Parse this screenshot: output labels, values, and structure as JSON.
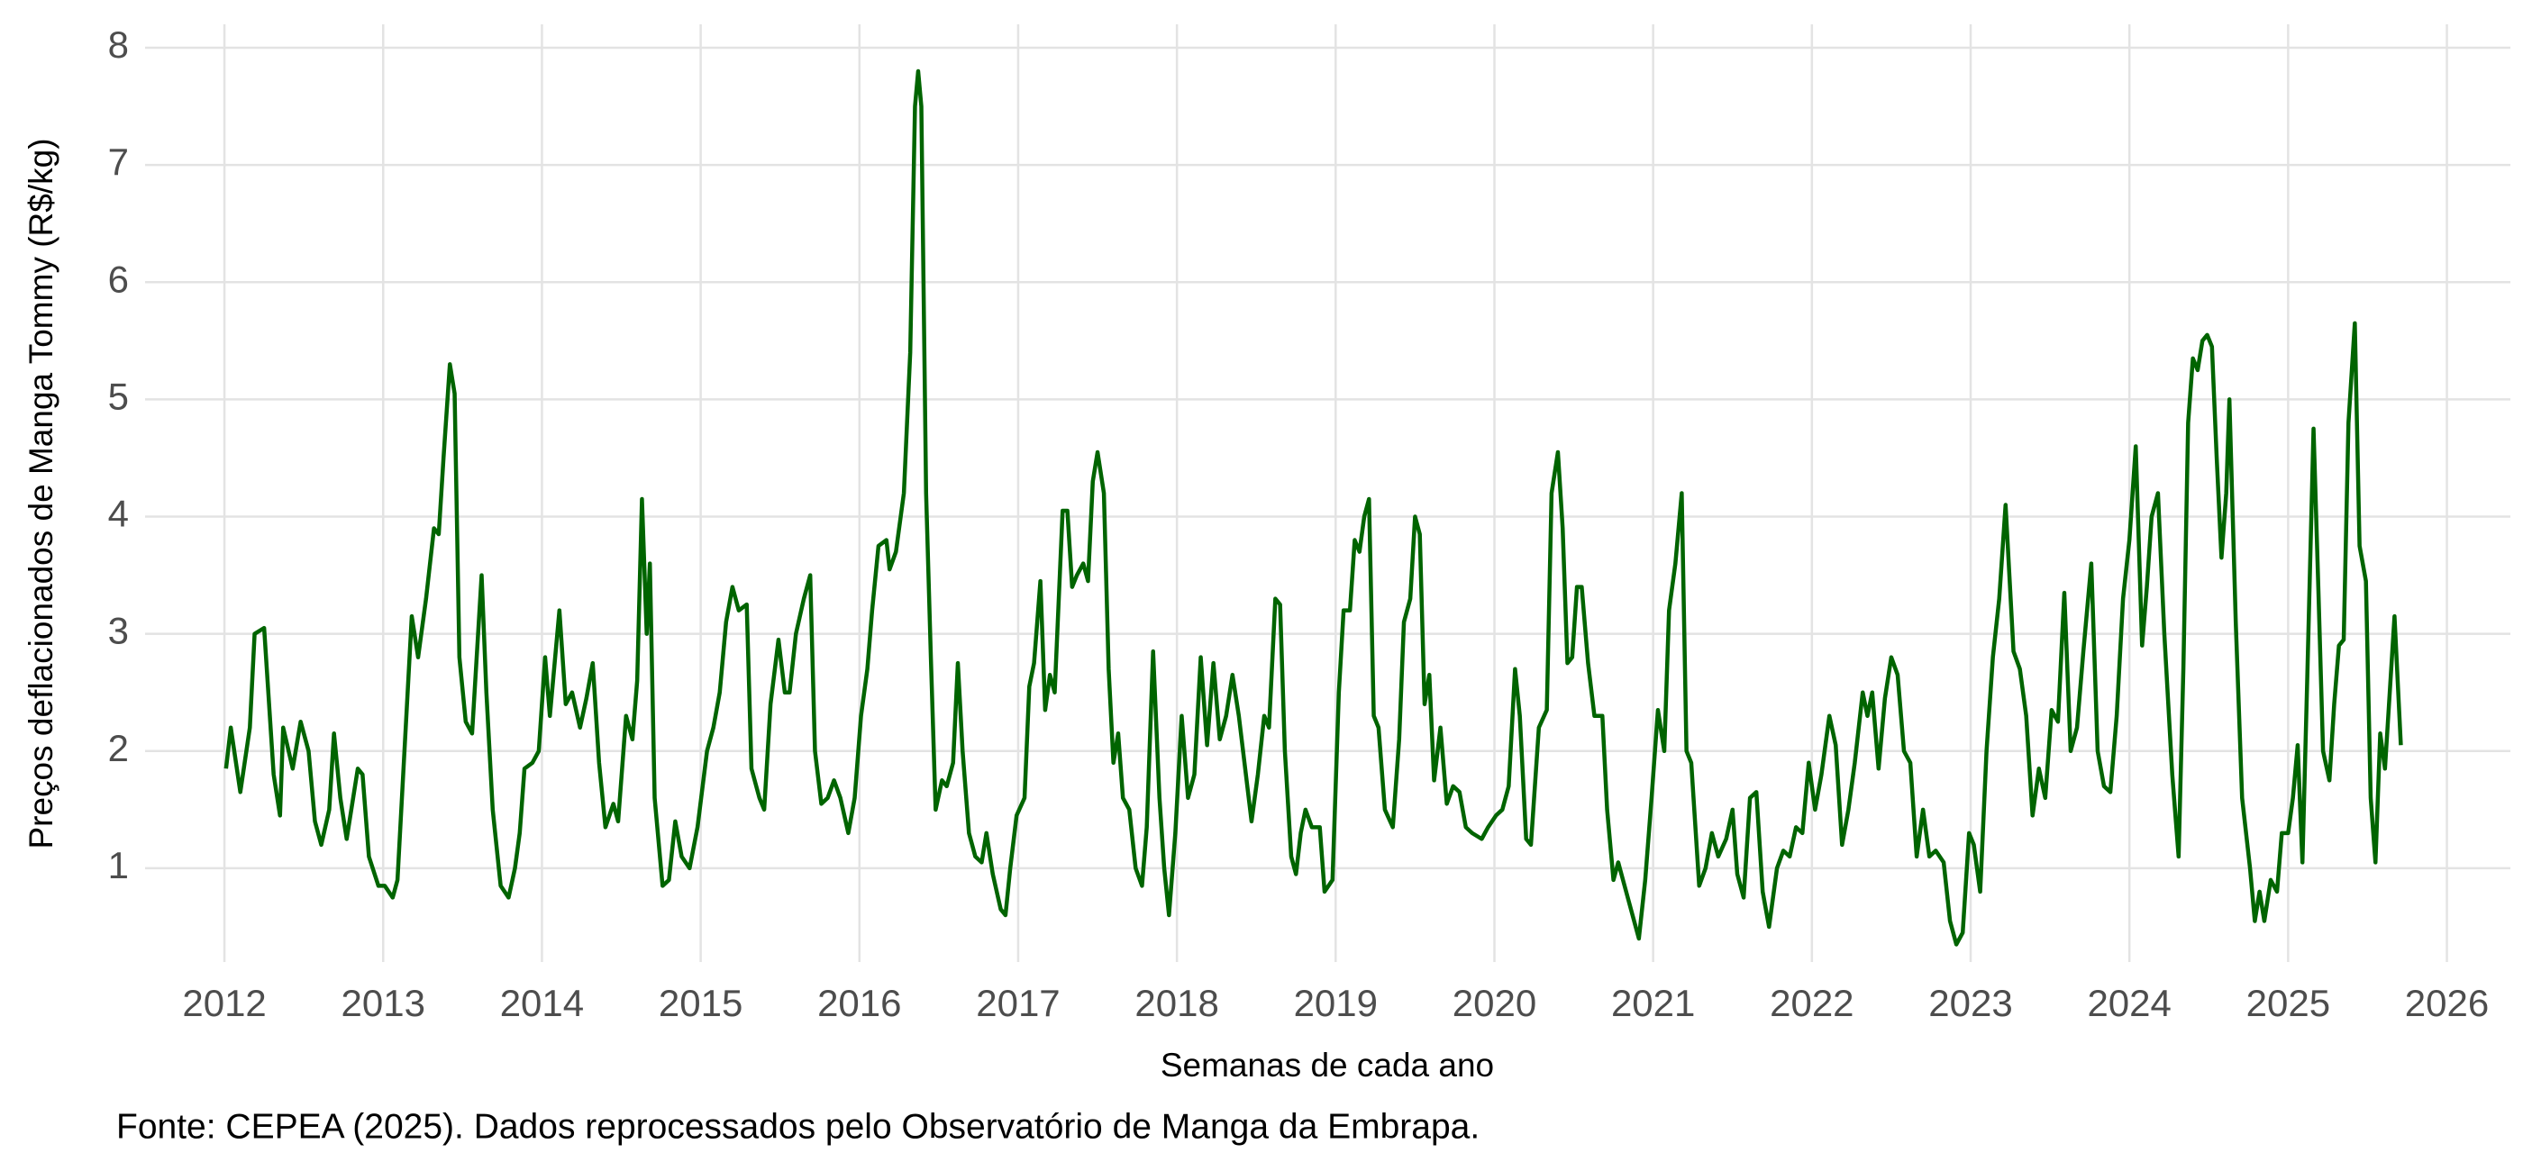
{
  "chart_data": {
    "type": "line",
    "y_label": "Preços deflacionados de Manga Tommy (R$/kg)",
    "x_label": "Semanas de cada ano",
    "caption": "Fonte: CEPEA (2025). Dados reprocessados pelo Observatório de Manga da Embrapa.",
    "color": "#006400",
    "grid": true,
    "xlim": [
      2011.5,
      2026.4
    ],
    "ylim": [
      0.2,
      8.2
    ],
    "xticks": [
      2012,
      2013,
      2014,
      2015,
      2016,
      2017,
      2018,
      2019,
      2020,
      2021,
      2022,
      2023,
      2024,
      2025,
      2026
    ],
    "yticks": [
      1,
      2,
      3,
      4,
      5,
      6,
      7,
      8
    ],
    "x": [
      2012.01,
      2012.04,
      2012.1,
      2012.16,
      2012.19,
      2012.25,
      2012.31,
      2012.35,
      2012.37,
      2012.43,
      2012.48,
      2012.53,
      2012.57,
      2012.61,
      2012.66,
      2012.69,
      2012.73,
      2012.77,
      2012.84,
      2012.87,
      2012.91,
      2012.97,
      2013.01,
      2013.06,
      2013.09,
      2013.13,
      2013.18,
      2013.22,
      2013.27,
      2013.32,
      2013.35,
      2013.38,
      2013.42,
      2013.45,
      2013.48,
      2013.52,
      2013.56,
      2013.62,
      2013.65,
      2013.69,
      2013.74,
      2013.79,
      2013.83,
      2013.86,
      2013.89,
      2013.94,
      2013.98,
      2014.02,
      2014.05,
      2014.11,
      2014.15,
      2014.19,
      2014.24,
      2014.28,
      2014.32,
      2014.36,
      2014.4,
      2014.45,
      2014.48,
      2014.53,
      2014.57,
      2014.6,
      2014.63,
      2014.66,
      2014.68,
      2014.71,
      2014.76,
      2014.8,
      2014.84,
      2014.88,
      2014.93,
      2014.98,
      2015.04,
      2015.08,
      2015.12,
      2015.16,
      2015.2,
      2015.24,
      2015.29,
      2015.32,
      2015.37,
      2015.4,
      2015.44,
      2015.49,
      2015.53,
      2015.56,
      2015.6,
      2015.65,
      2015.69,
      2015.72,
      2015.76,
      2015.8,
      2015.84,
      2015.88,
      2015.93,
      2015.97,
      2016.01,
      2016.05,
      2016.08,
      2016.12,
      2016.17,
      2016.19,
      2016.23,
      2016.28,
      2016.32,
      2016.35,
      2016.37,
      2016.39,
      2016.42,
      2016.45,
      2016.48,
      2016.52,
      2016.55,
      2016.59,
      2016.62,
      2016.65,
      2016.69,
      2016.73,
      2016.77,
      2016.8,
      2016.84,
      2016.89,
      2016.92,
      2016.95,
      2016.99,
      2017.04,
      2017.07,
      2017.1,
      2017.14,
      2017.17,
      2017.2,
      2017.23,
      2017.28,
      2017.31,
      2017.34,
      2017.37,
      2017.41,
      2017.44,
      2017.47,
      2017.5,
      2017.54,
      2017.57,
      2017.6,
      2017.63,
      2017.66,
      2017.7,
      2017.74,
      2017.78,
      2017.81,
      2017.85,
      2017.89,
      2017.92,
      2017.95,
      2017.99,
      2018.03,
      2018.07,
      2018.11,
      2018.15,
      2018.19,
      2018.23,
      2018.27,
      2018.31,
      2018.35,
      2018.39,
      2018.43,
      2018.47,
      2018.51,
      2018.55,
      2018.58,
      2018.62,
      2018.65,
      2018.68,
      2018.72,
      2018.75,
      2018.78,
      2018.81,
      2018.85,
      2018.9,
      2018.93,
      2018.98,
      2019.02,
      2019.05,
      2019.09,
      2019.12,
      2019.15,
      2019.18,
      2019.21,
      2019.24,
      2019.27,
      2019.31,
      2019.36,
      2019.4,
      2019.43,
      2019.47,
      2019.5,
      2019.53,
      2019.56,
      2019.59,
      2019.62,
      2019.66,
      2019.7,
      2019.74,
      2019.78,
      2019.82,
      2019.86,
      2019.92,
      2019.96,
      2020.01,
      2020.05,
      2020.09,
      2020.13,
      2020.16,
      2020.2,
      2020.23,
      2020.28,
      2020.33,
      2020.36,
      2020.4,
      2020.43,
      2020.46,
      2020.49,
      2020.52,
      2020.55,
      2020.59,
      2020.63,
      2020.68,
      2020.71,
      2020.75,
      2020.78,
      2020.82,
      2020.87,
      2020.91,
      2020.95,
      2020.99,
      2021.03,
      2021.07,
      2021.1,
      2021.14,
      2021.18,
      2021.21,
      2021.24,
      2021.29,
      2021.33,
      2021.37,
      2021.41,
      2021.46,
      2021.5,
      2021.53,
      2021.57,
      2021.61,
      2021.65,
      2021.69,
      2021.73,
      2021.78,
      2021.82,
      2021.86,
      2021.9,
      2021.94,
      2021.98,
      2022.02,
      2022.06,
      2022.11,
      2022.15,
      2022.19,
      2022.23,
      2022.27,
      2022.32,
      2022.35,
      2022.38,
      2022.42,
      2022.46,
      2022.5,
      2022.54,
      2022.58,
      2022.62,
      2022.66,
      2022.7,
      2022.74,
      2022.78,
      2022.83,
      2022.87,
      2022.91,
      2022.95,
      2022.99,
      2023.02,
      2023.06,
      2023.1,
      2023.14,
      2023.18,
      2023.22,
      2023.27,
      2023.31,
      2023.35,
      2023.39,
      2023.43,
      2023.47,
      2023.51,
      2023.55,
      2023.59,
      2023.63,
      2023.67,
      2023.71,
      2023.76,
      2023.8,
      2023.84,
      2023.88,
      2023.92,
      2023.96,
      2024.0,
      2024.04,
      2024.08,
      2024.11,
      2024.14,
      2024.18,
      2024.22,
      2024.27,
      2024.31,
      2024.34,
      2024.37,
      2024.4,
      2024.43,
      2024.46,
      2024.49,
      2024.52,
      2024.55,
      2024.58,
      2024.61,
      2024.63,
      2024.67,
      2024.71,
      2024.76,
      2024.79,
      2024.82,
      2024.85,
      2024.89,
      2024.93,
      2024.96,
      2025.0,
      2025.03,
      2025.06,
      2025.09,
      2025.12,
      2025.16,
      2025.19,
      2025.22,
      2025.26,
      2025.29,
      2025.32,
      2025.35,
      2025.38,
      2025.42,
      2025.45,
      2025.49,
      2025.52,
      2025.55,
      2025.58,
      2025.61,
      2025.64,
      2025.67,
      2025.71
    ],
    "values": [
      1.85,
      2.2,
      1.65,
      2.2,
      3.0,
      3.05,
      1.8,
      1.45,
      2.2,
      1.85,
      2.25,
      2.0,
      1.4,
      1.2,
      1.5,
      2.15,
      1.6,
      1.25,
      1.85,
      1.8,
      1.1,
      0.85,
      0.85,
      0.75,
      0.9,
      1.9,
      3.15,
      2.8,
      3.3,
      3.9,
      3.85,
      4.5,
      5.3,
      5.05,
      2.8,
      2.25,
      2.15,
      3.5,
      2.5,
      1.5,
      0.85,
      0.75,
      1.0,
      1.3,
      1.85,
      1.9,
      2.0,
      2.8,
      2.3,
      3.2,
      2.4,
      2.5,
      2.2,
      2.45,
      2.75,
      1.9,
      1.35,
      1.55,
      1.4,
      2.3,
      2.1,
      2.6,
      4.15,
      3.0,
      3.6,
      1.6,
      0.85,
      0.9,
      1.4,
      1.1,
      1.0,
      1.35,
      2.0,
      2.2,
      2.5,
      3.1,
      3.4,
      3.2,
      3.25,
      1.85,
      1.6,
      1.5,
      2.4,
      2.95,
      2.5,
      2.5,
      3.0,
      3.3,
      3.5,
      2.0,
      1.55,
      1.6,
      1.75,
      1.6,
      1.3,
      1.6,
      2.3,
      2.7,
      3.2,
      3.75,
      3.8,
      3.55,
      3.7,
      4.2,
      5.4,
      7.5,
      7.8,
      7.5,
      4.2,
      2.8,
      1.5,
      1.75,
      1.7,
      1.9,
      2.75,
      2.0,
      1.3,
      1.1,
      1.05,
      1.3,
      0.95,
      0.65,
      0.6,
      1.0,
      1.45,
      1.6,
      2.55,
      2.75,
      3.45,
      2.35,
      2.65,
      2.5,
      4.05,
      4.05,
      3.4,
      3.5,
      3.6,
      3.45,
      4.3,
      4.55,
      4.2,
      2.7,
      1.9,
      2.15,
      1.6,
      1.5,
      1.0,
      0.85,
      1.35,
      2.85,
      1.6,
      1.0,
      0.6,
      1.3,
      2.3,
      1.6,
      1.8,
      2.8,
      2.05,
      2.75,
      2.1,
      2.3,
      2.65,
      2.3,
      1.85,
      1.4,
      1.8,
      2.3,
      2.2,
      3.3,
      3.25,
      2.0,
      1.1,
      0.95,
      1.3,
      1.5,
      1.35,
      1.35,
      0.8,
      0.9,
      2.5,
      3.2,
      3.2,
      3.8,
      3.7,
      4.0,
      4.15,
      2.3,
      2.2,
      1.5,
      1.35,
      2.1,
      3.1,
      3.3,
      4.0,
      3.85,
      2.4,
      2.65,
      1.75,
      2.2,
      1.55,
      1.7,
      1.65,
      1.35,
      1.3,
      1.25,
      1.35,
      1.45,
      1.5,
      1.7,
      2.7,
      2.3,
      1.25,
      1.2,
      2.2,
      2.35,
      4.2,
      4.55,
      3.9,
      2.75,
      2.8,
      3.4,
      3.4,
      2.75,
      2.3,
      2.3,
      1.5,
      0.9,
      1.05,
      0.85,
      0.6,
      0.4,
      0.9,
      1.6,
      2.35,
      2.0,
      3.2,
      3.6,
      4.2,
      2.0,
      1.9,
      0.85,
      1.0,
      1.3,
      1.1,
      1.25,
      1.5,
      0.95,
      0.75,
      1.6,
      1.65,
      0.8,
      0.5,
      1.0,
      1.15,
      1.1,
      1.35,
      1.3,
      1.9,
      1.5,
      1.8,
      2.3,
      2.05,
      1.2,
      1.5,
      1.9,
      2.5,
      2.3,
      2.5,
      1.85,
      2.45,
      2.8,
      2.65,
      2.0,
      1.9,
      1.1,
      1.5,
      1.1,
      1.15,
      1.05,
      0.55,
      0.35,
      0.45,
      1.3,
      1.2,
      0.8,
      2.0,
      2.8,
      3.3,
      4.1,
      2.85,
      2.7,
      2.3,
      1.45,
      1.85,
      1.6,
      2.35,
      2.25,
      3.35,
      2.0,
      2.2,
      2.85,
      3.6,
      2.0,
      1.7,
      1.65,
      2.3,
      3.3,
      3.8,
      4.6,
      2.9,
      3.4,
      4.0,
      4.2,
      3.0,
      1.8,
      1.1,
      2.7,
      4.8,
      5.35,
      5.25,
      5.5,
      5.55,
      5.45,
      4.5,
      3.65,
      4.2,
      5.0,
      3.1,
      1.6,
      1.0,
      0.55,
      0.8,
      0.55,
      0.9,
      0.8,
      1.3,
      1.3,
      1.6,
      2.05,
      1.05,
      2.6,
      4.75,
      3.4,
      2.0,
      1.75,
      2.4,
      2.9,
      2.95,
      4.8,
      5.65,
      3.75,
      3.45,
      1.6,
      1.05,
      2.15,
      1.85,
      2.5,
      3.15,
      2.05
    ]
  }
}
